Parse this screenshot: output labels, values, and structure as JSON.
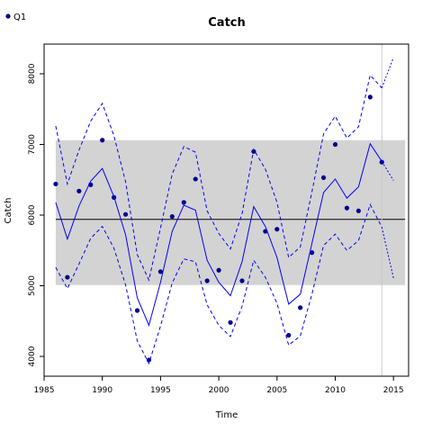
{
  "chart_data": {
    "type": "line",
    "title": "Catch",
    "xlabel": "Time",
    "ylabel": "Catch",
    "xlim": [
      1985,
      2016.3
    ],
    "ylim": [
      3720,
      8420
    ],
    "x_ticks": [
      1985,
      1990,
      1995,
      2000,
      2005,
      2010,
      2015
    ],
    "y_ticks": [
      4000,
      5000,
      6000,
      7000,
      8000
    ],
    "grid": false,
    "legend_position": "top-left",
    "legend": [
      {
        "label": "Q1",
        "marker": "point",
        "color": "#00008b"
      }
    ],
    "band": {
      "x": [
        1986,
        2016
      ],
      "y": [
        5010,
        7060
      ],
      "color": "#d3d3d3"
    },
    "reference_line": {
      "y": 5940,
      "x": [
        1986,
        2016
      ],
      "color": "#000000"
    },
    "vertical_line": {
      "x": 2014,
      "color": "#c8c8c8"
    },
    "series": [
      {
        "name": "Q1",
        "kind": "points",
        "color": "#00008b",
        "x": [
          1986,
          1987,
          1988,
          1989,
          1990,
          1991,
          1992,
          1993,
          1994,
          1995,
          1996,
          1997,
          1998,
          1999,
          2000,
          2001,
          2002,
          2003,
          2004,
          2005,
          2006,
          2007,
          2008,
          2009,
          2010,
          2011,
          2012,
          2013,
          2014
        ],
        "values": [
          6440,
          5120,
          6340,
          6430,
          7060,
          6250,
          6010,
          4650,
          3950,
          5200,
          5980,
          6180,
          6510,
          5070,
          5220,
          4480,
          5070,
          6900,
          5770,
          5800,
          4300,
          4690,
          5470,
          6530,
          7000,
          6100,
          6060,
          7670,
          6750
        ]
      },
      {
        "kind": "fit",
        "style": "solid",
        "color": "#0000ff",
        "x": [
          1986,
          1987,
          1988,
          1989,
          1990,
          1991,
          1992,
          1993,
          1994,
          1995,
          1996,
          1997,
          1998,
          1999,
          2000,
          2001,
          2002,
          2003,
          2004,
          2005,
          2006,
          2007,
          2008,
          2009,
          2010,
          2011,
          2012,
          2013,
          2014
        ],
        "values": [
          6180,
          5660,
          6130,
          6480,
          6660,
          6260,
          5720,
          4830,
          4440,
          5050,
          5770,
          6140,
          6070,
          5360,
          5050,
          4860,
          5340,
          6120,
          5840,
          5400,
          4740,
          4880,
          5600,
          6320,
          6510,
          6240,
          6400,
          7010,
          6760
        ]
      },
      {
        "kind": "upper-bound",
        "style": "dashed",
        "color": "#0000ff",
        "x": [
          1986,
          1987,
          1988,
          1989,
          1990,
          1991,
          1992,
          1993,
          1994,
          1995,
          1996,
          1997,
          1998,
          1999,
          2000,
          2001,
          2002,
          2003,
          2004,
          2005,
          2006,
          2007,
          2008,
          2009,
          2010,
          2011,
          2012,
          2013,
          2014
        ],
        "values": [
          7260,
          6440,
          6920,
          7330,
          7580,
          7120,
          6470,
          5440,
          5080,
          5820,
          6580,
          6970,
          6890,
          6060,
          5740,
          5520,
          6020,
          6930,
          6650,
          6180,
          5400,
          5550,
          6330,
          7150,
          7400,
          7090,
          7250,
          7980,
          7800
        ]
      },
      {
        "kind": "lower-bound",
        "style": "dashed",
        "color": "#0000ff",
        "x": [
          1986,
          1987,
          1988,
          1989,
          1990,
          1991,
          1992,
          1993,
          1994,
          1995,
          1996,
          1997,
          1998,
          1999,
          2000,
          2001,
          2002,
          2003,
          2004,
          2005,
          2006,
          2007,
          2008,
          2009,
          2010,
          2011,
          2012,
          2013,
          2014
        ],
        "values": [
          5260,
          4960,
          5310,
          5670,
          5840,
          5530,
          5010,
          4220,
          3900,
          4430,
          5040,
          5380,
          5340,
          4730,
          4440,
          4280,
          4710,
          5360,
          5120,
          4750,
          4160,
          4290,
          4880,
          5570,
          5730,
          5500,
          5640,
          6150,
          5830
        ]
      },
      {
        "kind": "forecast-upper",
        "style": "dotted",
        "color": "#0000ff",
        "x": [
          2014,
          2015
        ],
        "values": [
          7800,
          8230
        ]
      },
      {
        "kind": "forecast-mid",
        "style": "dotted",
        "color": "#0000ff",
        "x": [
          2014,
          2015
        ],
        "values": [
          6760,
          6490
        ]
      },
      {
        "kind": "forecast-lower",
        "style": "dotted",
        "color": "#0000ff",
        "x": [
          2014,
          2015
        ],
        "values": [
          5830,
          5110
        ]
      }
    ]
  }
}
